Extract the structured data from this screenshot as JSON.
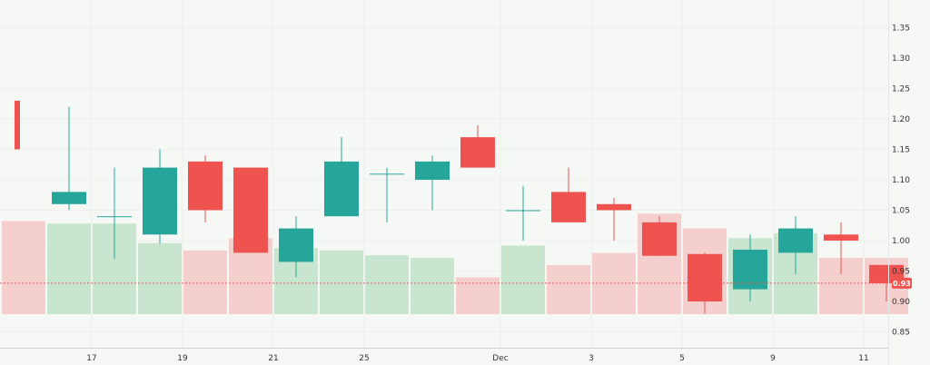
{
  "chart_data": {
    "type": "candlestick",
    "title": "",
    "xlabel": "",
    "ylabel": "",
    "ylim": [
      0.82,
      1.38
    ],
    "y_ticks": [
      "0.85",
      "0.90",
      "0.95",
      "1.00",
      "1.05",
      "1.10",
      "1.15",
      "1.20",
      "1.25",
      "1.30",
      "1.35"
    ],
    "x_ticks": [
      {
        "label": "17",
        "index": 1.5
      },
      {
        "label": "19",
        "index": 3.5
      },
      {
        "label": "21",
        "index": 5.5
      },
      {
        "label": "25",
        "index": 7.5
      },
      {
        "label": "Dec",
        "index": 10.5
      },
      {
        "label": "3",
        "index": 12.5
      },
      {
        "label": "5",
        "index": 14.5
      },
      {
        "label": "9",
        "index": 16.5
      },
      {
        "label": "11",
        "index": 18.5
      }
    ],
    "candles": [
      {
        "open": 1.23,
        "high": 1.23,
        "low": 1.15,
        "close": 1.15
      },
      {
        "open": 1.06,
        "high": 1.22,
        "low": 1.05,
        "close": 1.08
      },
      {
        "open": 1.04,
        "high": 1.12,
        "low": 0.97,
        "close": 1.04
      },
      {
        "open": 1.01,
        "high": 1.15,
        "low": 0.995,
        "close": 1.12
      },
      {
        "open": 1.13,
        "high": 1.14,
        "low": 1.03,
        "close": 1.05
      },
      {
        "open": 1.12,
        "high": 1.12,
        "low": 0.98,
        "close": 0.98
      },
      {
        "open": 0.965,
        "high": 1.04,
        "low": 0.94,
        "close": 1.02
      },
      {
        "open": 1.04,
        "high": 1.17,
        "low": 1.04,
        "close": 1.13
      },
      {
        "open": 1.11,
        "high": 1.12,
        "low": 1.03,
        "close": 1.11
      },
      {
        "open": 1.1,
        "high": 1.14,
        "low": 1.05,
        "close": 1.13
      },
      {
        "open": 1.17,
        "high": 1.19,
        "low": 1.12,
        "close": 1.12
      },
      {
        "open": 1.05,
        "high": 1.09,
        "low": 1.0,
        "close": 1.05
      },
      {
        "open": 1.08,
        "high": 1.12,
        "low": 1.03,
        "close": 1.03
      },
      {
        "open": 1.06,
        "high": 1.07,
        "low": 1.0,
        "close": 1.05
      },
      {
        "open": 1.03,
        "high": 1.04,
        "low": 0.975,
        "close": 0.975
      },
      {
        "open": 0.978,
        "high": 0.98,
        "low": 0.88,
        "close": 0.9
      },
      {
        "open": 0.92,
        "high": 1.01,
        "low": 0.9,
        "close": 0.985
      },
      {
        "open": 0.98,
        "high": 1.04,
        "low": 0.945,
        "close": 1.02
      },
      {
        "open": 1.01,
        "high": 1.03,
        "low": 0.945,
        "close": 1.0
      },
      {
        "open": 0.96,
        "high": 0.96,
        "low": 0.9,
        "close": 0.93
      }
    ],
    "volume": [
      0.38,
      0.37,
      0.37,
      0.29,
      0.26,
      0.31,
      0.27,
      0.26,
      0.24,
      0.23,
      0.15,
      0.28,
      0.2,
      0.25,
      0.41,
      0.35,
      0.31,
      0.33,
      0.23,
      0.23
    ],
    "last_price": "0.93",
    "colors": {
      "up": "#26a69a",
      "down": "#ef5350",
      "volume_up": "#c8e6cf",
      "volume_down": "#f5cfcd",
      "background": "#f5f8f5"
    }
  }
}
